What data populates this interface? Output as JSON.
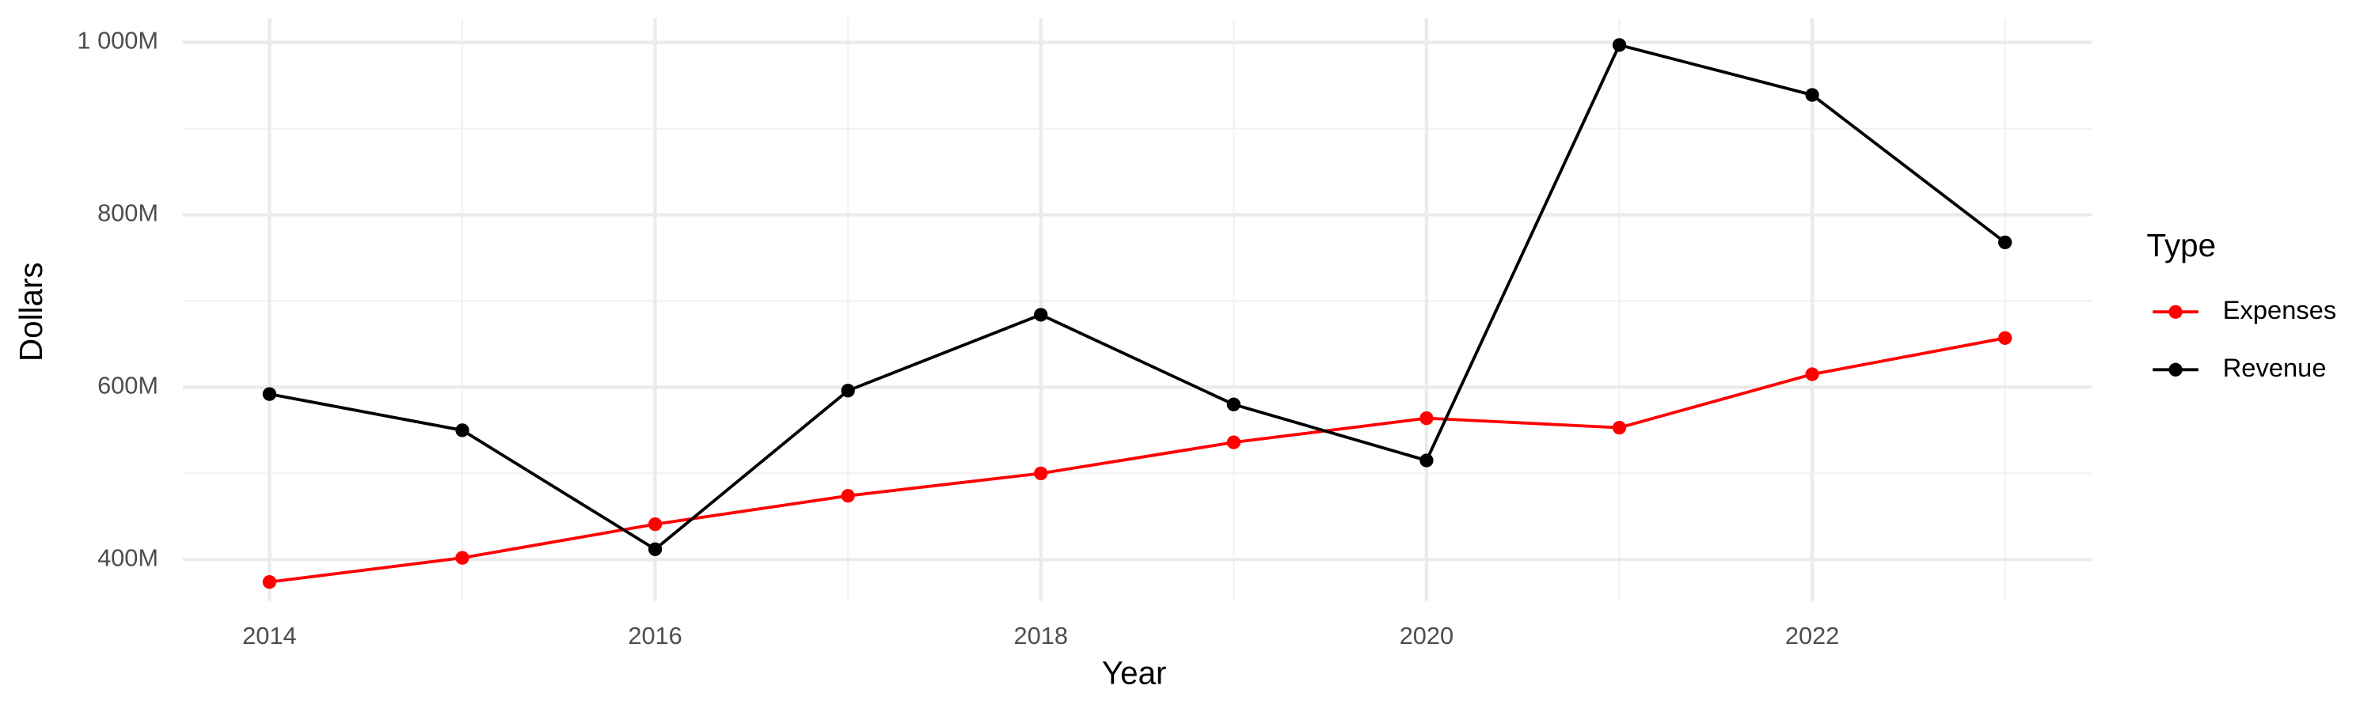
{
  "chart_data": {
    "type": "line",
    "x_label": "Year",
    "y_label": "Dollars",
    "legend_title": "Type",
    "x": [
      2014,
      2015,
      2016,
      2017,
      2018,
      2019,
      2020,
      2021,
      2022,
      2023
    ],
    "series": [
      {
        "name": "Expenses",
        "color": "#ff0000",
        "values": [
          374,
          402,
          441,
          474,
          500,
          536,
          564,
          553,
          615,
          657
        ]
      },
      {
        "name": "Revenue",
        "color": "#000000",
        "values": [
          592,
          550,
          412,
          596,
          684,
          580,
          515,
          997,
          939,
          768
        ]
      }
    ],
    "xlim": [
      2013.55,
      2023.45
    ],
    "xticks": [
      2014,
      2016,
      2018,
      2020,
      2022
    ],
    "ylim": [
      352,
      1028
    ],
    "yticks": [
      {
        "value": 400,
        "label": "400M"
      },
      {
        "value": 600,
        "label": "600M"
      },
      {
        "value": 800,
        "label": "800M"
      },
      {
        "value": 1000,
        "label": "1 000M"
      }
    ],
    "grid": true,
    "legend_position": "right"
  }
}
